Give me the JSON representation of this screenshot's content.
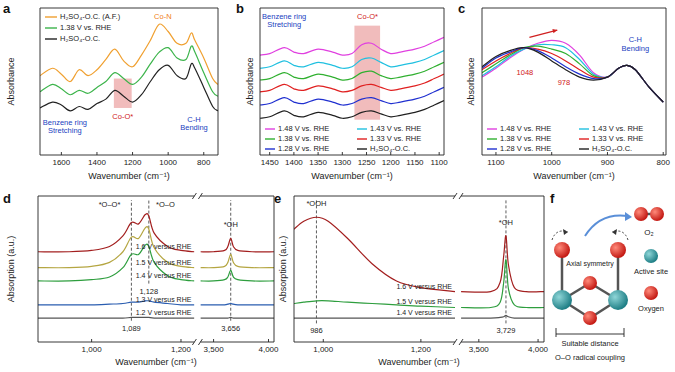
{
  "chart_data": [
    {
      "type": "line",
      "title": "a",
      "x_label": "Wavenumber (cm⁻¹)",
      "y_label": "Absorbance",
      "xlim": [
        1720,
        720
      ],
      "ylim": [
        0,
        10
      ],
      "xticks": [
        1600,
        1400,
        1200,
        1000,
        800
      ],
      "tick_labels": "x",
      "legend": "top-left",
      "x": [
        1720,
        1650,
        1600,
        1550,
        1500,
        1450,
        1400,
        1350,
        1300,
        1250,
        1200,
        1150,
        1100,
        1050,
        1000,
        950,
        900,
        870,
        850,
        800,
        750,
        720
      ],
      "series": [
        {
          "name": "H₂SO₄-O.C. (A.F.)",
          "color": "#f0a030",
          "values": [
            5.4,
            5.9,
            5.5,
            5.0,
            5.8,
            5.4,
            5.8,
            6.5,
            7.2,
            6.4,
            6.0,
            6.8,
            7.8,
            8.9,
            8.4,
            7.6,
            7.6,
            8.3,
            7.8,
            6.6,
            5.2,
            4.8
          ]
        },
        {
          "name": "1.38 V vs. RHE",
          "color": "#3cb44b",
          "values": [
            4.3,
            4.8,
            4.5,
            4.1,
            4.4,
            4.2,
            4.6,
            5.0,
            5.6,
            5.2,
            4.8,
            5.3,
            6.2,
            7.0,
            7.3,
            6.6,
            6.5,
            7.4,
            7.0,
            5.6,
            4.3,
            4.0
          ]
        },
        {
          "name": "H₂SO₄-O.C.",
          "color": "#222222",
          "values": [
            3.2,
            3.6,
            3.4,
            3.0,
            3.3,
            3.1,
            3.5,
            3.8,
            4.4,
            4.0,
            3.6,
            4.1,
            5.0,
            5.8,
            6.1,
            5.4,
            5.2,
            6.2,
            5.9,
            4.6,
            3.3,
            3.0
          ]
        }
      ],
      "annotations": [
        {
          "text": "Co-O*",
          "x": 1255,
          "y": 2.6,
          "color": "#d02020",
          "x0": 1305,
          "x1": 1205,
          "y0": 3.2,
          "y1": 5.2
        },
        {
          "text": "Co-N",
          "x": 1030,
          "y": 9.4,
          "color": "#f08020"
        },
        {
          "text": "Benzene ring\nStretching",
          "x": 1580,
          "y": 2.2,
          "color": "#2040c0"
        },
        {
          "text": "C-H\nBending",
          "x": 855,
          "y": 2.4,
          "color": "#2040c0"
        }
      ]
    },
    {
      "type": "line",
      "title": "b",
      "x_label": "Wavenumber (cm⁻¹)",
      "y_label": "Absorbance",
      "xlim": [
        1470,
        1090
      ],
      "ylim": [
        0,
        10
      ],
      "xticks": [
        1450,
        1400,
        1350,
        1300,
        1250,
        1200,
        1150,
        1100
      ],
      "tick_labels": "x",
      "legend": "bottom",
      "x": [
        1470,
        1450,
        1420,
        1400,
        1380,
        1350,
        1320,
        1300,
        1280,
        1260,
        1240,
        1220,
        1200,
        1180,
        1150,
        1130,
        1110,
        1090
      ],
      "series": [
        {
          "name": "1.48 V vs. RHE",
          "color": "#e040e0",
          "values": [
            6.8,
            6.9,
            7.3,
            7.0,
            6.9,
            7.2,
            7.0,
            6.8,
            6.9,
            7.5,
            7.6,
            7.2,
            6.9,
            7.0,
            7.2,
            7.4,
            7.7,
            8.0
          ]
        },
        {
          "name": "1.43 V vs. RHE",
          "color": "#20c0e0",
          "values": [
            5.9,
            6.0,
            6.4,
            6.1,
            6.0,
            6.3,
            6.1,
            5.9,
            6.0,
            6.5,
            6.6,
            6.3,
            6.0,
            6.1,
            6.3,
            6.5,
            6.8,
            7.1
          ]
        },
        {
          "name": "1.38 V vs. RHE",
          "color": "#30b030",
          "values": [
            5.1,
            5.2,
            5.6,
            5.3,
            5.2,
            5.5,
            5.3,
            5.1,
            5.2,
            5.6,
            5.7,
            5.4,
            5.2,
            5.3,
            5.5,
            5.7,
            6.0,
            6.3
          ]
        },
        {
          "name": "1.33 V vs. RHE",
          "color": "#e02020",
          "values": [
            4.3,
            4.4,
            4.8,
            4.5,
            4.4,
            4.7,
            4.5,
            4.3,
            4.4,
            4.7,
            4.8,
            4.6,
            4.4,
            4.5,
            4.7,
            4.9,
            5.2,
            5.5
          ]
        },
        {
          "name": "1.28 V vs. RHE",
          "color": "#2030d0",
          "values": [
            3.4,
            3.5,
            3.9,
            3.6,
            3.5,
            3.8,
            3.6,
            3.4,
            3.5,
            3.8,
            3.9,
            3.7,
            3.5,
            3.6,
            3.8,
            4.0,
            4.3,
            4.6
          ]
        },
        {
          "name": "H₂SO₄-O.C.",
          "color": "#202020",
          "values": [
            2.5,
            2.6,
            3.0,
            2.7,
            2.6,
            2.9,
            2.7,
            2.5,
            2.6,
            2.9,
            3.0,
            2.8,
            2.6,
            2.7,
            2.9,
            3.1,
            3.4,
            3.7
          ]
        }
      ],
      "annotations": [
        {
          "text": "Co-O*",
          "x": 1248,
          "y": 9.4,
          "color": "#d02020",
          "x0": 1275,
          "x1": 1222,
          "y0": 2.4,
          "y1": 8.8
        },
        {
          "text": "Benzene ring\nStretching",
          "x": 1420,
          "y": 9.4,
          "color": "#2040c0"
        }
      ]
    },
    {
      "type": "line",
      "title": "c",
      "x_label": "Wavenumber (cm⁻¹)",
      "y_label": "Absorbance",
      "xlim": [
        1125,
        795
      ],
      "ylim": [
        0,
        10
      ],
      "xticks": [
        1100,
        1000,
        900,
        800
      ],
      "tick_labels": "x",
      "legend": "bottom",
      "x": [
        1125,
        1100,
        1075,
        1050,
        1025,
        1000,
        975,
        950,
        925,
        900,
        880,
        865,
        850,
        825,
        800
      ],
      "series": [
        {
          "name": "1.48 V vs. RHE",
          "color": "#e040e0",
          "values": [
            5.3,
            5.9,
            6.6,
            7.2,
            7.6,
            7.8,
            7.6,
            6.8,
            5.6,
            5.3,
            5.9,
            6.1,
            5.8,
            4.6,
            3.6
          ]
        },
        {
          "name": "1.43 V vs. RHE",
          "color": "#20c0e0",
          "values": [
            5.4,
            6.0,
            6.7,
            7.2,
            7.5,
            7.5,
            7.3,
            6.5,
            5.5,
            5.3,
            5.9,
            6.1,
            5.8,
            4.6,
            3.6
          ]
        },
        {
          "name": "1.38 V vs. RHE",
          "color": "#30b030",
          "values": [
            5.6,
            6.2,
            6.8,
            7.3,
            7.4,
            7.2,
            6.9,
            6.2,
            5.4,
            5.3,
            5.9,
            6.1,
            5.8,
            4.6,
            3.6
          ]
        },
        {
          "name": "1.33 V vs. RHE",
          "color": "#e02020",
          "values": [
            5.8,
            6.4,
            6.9,
            7.3,
            7.2,
            6.9,
            6.4,
            5.8,
            5.3,
            5.3,
            5.9,
            6.1,
            5.8,
            4.6,
            3.6
          ]
        },
        {
          "name": "1.28 V vs. RHE",
          "color": "#2030d0",
          "values": [
            5.9,
            6.6,
            7.0,
            7.3,
            7.1,
            6.6,
            6.0,
            5.5,
            5.2,
            5.3,
            5.9,
            6.1,
            5.8,
            4.6,
            3.6
          ]
        },
        {
          "name": "H₂SO₄-O.C.",
          "color": "#202020",
          "values": [
            6.0,
            6.7,
            7.1,
            7.3,
            7.0,
            6.4,
            5.8,
            5.3,
            5.1,
            5.3,
            5.9,
            6.1,
            5.8,
            4.6,
            3.6
          ]
        }
      ],
      "annotations": [
        {
          "text": "1048",
          "x": 1048,
          "y": 5.6,
          "color": "#d02020"
        },
        {
          "text": "978",
          "x": 978,
          "y": 4.9,
          "color": "#d02020"
        },
        {
          "text": "C-H\nBending",
          "x": 850,
          "y": 7.8,
          "color": "#2040c0"
        },
        {
          "type": "arrow",
          "x": [
            1040,
            990
          ],
          "y": [
            8.0,
            8.5
          ],
          "color": "#d02020"
        }
      ]
    },
    {
      "type": "line",
      "title": "d",
      "x_label": "Wavenumber (cm⁻¹)",
      "y_label": "Absorption (a.u.)",
      "xlim": [
        [
          880,
          1230
        ],
        [
          3380,
          4050
        ]
      ],
      "ylim": [
        -1,
        10
      ],
      "xticks": [
        {
          "value": 1000,
          "label": "1,000"
        },
        {
          "value": 1200,
          "label": "1,200"
        },
        {
          "value": 3500,
          "label": "3,500"
        },
        {
          "value": 4000,
          "label": "4,000"
        }
      ],
      "tick_labels": "x",
      "legend": "inline",
      "x": [
        880,
        950,
        1000,
        1040,
        1070,
        1089,
        1105,
        1120,
        1128,
        1140,
        1170,
        1200,
        1230,
        2300,
        3380,
        3500,
        3600,
        3630,
        3656,
        3680,
        3720,
        3850,
        4050
      ],
      "series": [
        {
          "name": "1.6 V versus RHE",
          "color": "#a31f1f",
          "values": [
            5.8,
            5.8,
            5.9,
            6.2,
            7.0,
            8.0,
            7.9,
            8.6,
            8.5,
            7.2,
            6.2,
            5.9,
            5.8,
            null,
            5.8,
            5.8,
            5.9,
            6.2,
            6.8,
            6.2,
            5.9,
            5.8,
            5.8
          ]
        },
        {
          "name": "1.5 V versus RHE",
          "color": "#b5a642",
          "values": [
            4.6,
            4.6,
            4.7,
            5.0,
            5.8,
            6.9,
            6.8,
            7.6,
            7.5,
            6.1,
            5.0,
            4.7,
            4.6,
            null,
            4.6,
            4.6,
            4.7,
            5.0,
            5.6,
            5.0,
            4.7,
            4.6,
            4.6
          ]
        },
        {
          "name": "1.4 V versus RHE",
          "color": "#2e9e3e",
          "values": [
            3.6,
            3.6,
            3.7,
            3.9,
            4.6,
            5.6,
            5.6,
            6.3,
            6.2,
            5.0,
            4.0,
            3.7,
            3.6,
            null,
            3.6,
            3.6,
            3.7,
            3.9,
            4.4,
            3.9,
            3.7,
            3.6,
            3.6
          ]
        },
        {
          "name": "1.3 V versus RHE",
          "color": "#2a5db0",
          "values": [
            1.8,
            1.8,
            1.8,
            1.85,
            1.9,
            2.0,
            2.0,
            2.1,
            2.1,
            2.0,
            1.9,
            1.8,
            1.8,
            null,
            1.8,
            1.8,
            1.8,
            1.85,
            1.9,
            1.85,
            1.8,
            1.8,
            1.8
          ]
        },
        {
          "name": "1.2 V versus RHE",
          "color": "#555555",
          "values": [
            0.8,
            0.8,
            0.8,
            0.8,
            0.8,
            0.85,
            0.85,
            0.85,
            0.85,
            0.8,
            0.8,
            0.8,
            0.8,
            null,
            0.8,
            0.8,
            0.8,
            0.8,
            0.85,
            0.8,
            0.8,
            0.8,
            0.8
          ]
        }
      ],
      "annotations": [
        {
          "text": "*O–O*",
          "x": 1040,
          "y": 9.3
        },
        {
          "text": "*O–O",
          "x": 1165,
          "y": 9.3
        },
        {
          "text": "*OH",
          "x": 3656,
          "y": 7.8
        },
        {
          "text": "1,089",
          "x": 1089,
          "y": 0.0,
          "line_style": "dashed"
        },
        {
          "text": "1,128",
          "x": 1128,
          "y": 2.8,
          "line_style": "dashed"
        },
        {
          "text": "3,656",
          "x": 3656,
          "y": 0.0,
          "line_style": "dashed"
        }
      ]
    },
    {
      "type": "line",
      "title": "e",
      "x_label": "Wavenumber (cm⁻¹)",
      "y_label": "Absorption (a.u.)",
      "xlim": [
        [
          940,
          1270
        ],
        [
          3350,
          4050
        ]
      ],
      "ylim": [
        -1,
        10
      ],
      "xticks": [
        {
          "value": 1000,
          "label": "1,000"
        },
        {
          "value": 1200,
          "label": "1,200"
        },
        {
          "value": 3500,
          "label": "3,500"
        },
        {
          "value": 4000,
          "label": "4,000"
        }
      ],
      "tick_labels": "x",
      "legend": "inline",
      "x": [
        940,
        960,
        986,
        1010,
        1050,
        1100,
        1150,
        1200,
        1270,
        2300,
        3350,
        3600,
        3680,
        3710,
        3729,
        3750,
        3800,
        3900,
        4050
      ],
      "series": [
        {
          "name": "1.6 V versus RHE",
          "color": "#a31f1f",
          "values": [
            7.5,
            8.1,
            8.4,
            8.1,
            6.8,
            4.9,
            3.6,
            3.1,
            2.8,
            null,
            2.8,
            2.8,
            3.5,
            5.5,
            7.0,
            4.8,
            3.1,
            2.8,
            2.8
          ]
        },
        {
          "name": "1.5 V versus RHE",
          "color": "#2e9e3e",
          "values": [
            1.9,
            2.0,
            2.1,
            2.1,
            2.0,
            1.9,
            1.8,
            1.7,
            1.6,
            null,
            1.6,
            1.6,
            2.0,
            3.5,
            5.2,
            3.0,
            1.8,
            1.6,
            1.6
          ]
        },
        {
          "name": "1.4 V versus RHE",
          "color": "#555555",
          "values": [
            0.8,
            0.8,
            0.8,
            0.8,
            0.8,
            0.8,
            0.8,
            0.8,
            0.8,
            null,
            0.8,
            0.8,
            0.85,
            0.9,
            1.0,
            0.9,
            0.8,
            0.8,
            0.8
          ]
        }
      ],
      "annotations": [
        {
          "text": "*OOH",
          "x": 986,
          "y": 9.4
        },
        {
          "text": "*OH",
          "x": 3729,
          "y": 8.0
        },
        {
          "text": "986",
          "x": 986,
          "y": -0.2,
          "line_style": "dashed"
        },
        {
          "text": "3,729",
          "x": 3729,
          "y": -0.2,
          "line_style": "dashed"
        }
      ]
    }
  ],
  "diagram": {
    "title": "f",
    "o2": "O₂",
    "active_site": "Active site",
    "oxygen": "Oxygen",
    "axial_symmetry": "Axial symmetry",
    "suitable_distance": "Suitable distance",
    "coupling": "O–O radical coupling"
  }
}
